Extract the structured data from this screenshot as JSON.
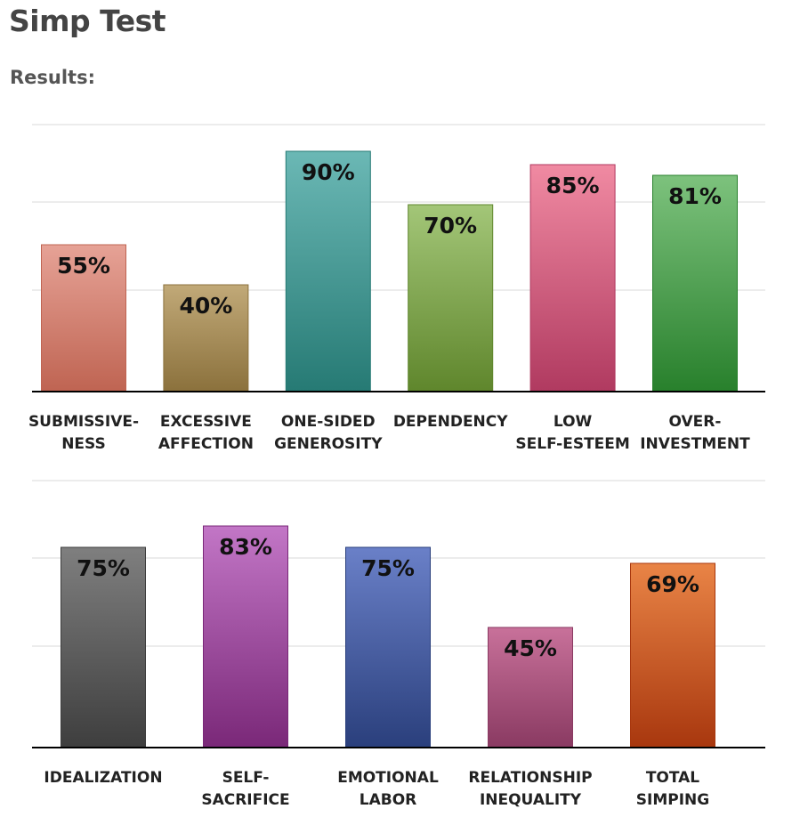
{
  "page": {
    "title": "Simp Test",
    "results_label": "Results:"
  },
  "chart_data": [
    {
      "type": "bar",
      "title": "",
      "xlabel": "",
      "ylabel": "",
      "ylim": [
        0,
        100
      ],
      "grid": true,
      "categories": [
        [
          "SUBMISSIVE-",
          "NESS"
        ],
        [
          "EXCESSIVE",
          "AFFECTION"
        ],
        [
          "ONE-SIDED",
          "GENEROSITY"
        ],
        [
          "DEPENDENCY"
        ],
        [
          "LOW",
          "SELF-ESTEEM"
        ],
        [
          "OVER-",
          "INVESTMENT"
        ]
      ],
      "values": [
        55,
        40,
        90,
        70,
        85,
        81
      ],
      "value_labels": [
        "55%",
        "40%",
        "90%",
        "70%",
        "85%",
        "81%"
      ],
      "colors": [
        [
          "#e6a296",
          "#bf6452"
        ],
        [
          "#c1a978",
          "#8b713c"
        ],
        [
          "#6bb8b5",
          "#267a74"
        ],
        [
          "#a3c678",
          "#5f862c"
        ],
        [
          "#f08aa2",
          "#b03a60"
        ],
        [
          "#7dc27d",
          "#28802c"
        ]
      ]
    },
    {
      "type": "bar",
      "title": "",
      "xlabel": "",
      "ylabel": "",
      "ylim": [
        0,
        100
      ],
      "grid": true,
      "categories": [
        [
          "IDEALIZATION"
        ],
        [
          "SELF-",
          "SACRIFICE"
        ],
        [
          "EMOTIONAL",
          "LABOR"
        ],
        [
          "RELATIONSHIP",
          "INEQUALITY"
        ],
        [
          "TOTAL",
          "SIMPING"
        ]
      ],
      "values": [
        75,
        83,
        75,
        45,
        69
      ],
      "value_labels": [
        "75%",
        "83%",
        "75%",
        "45%",
        "69%"
      ],
      "colors": [
        [
          "#7f7f7f",
          "#3e3e3e"
        ],
        [
          "#c276c6",
          "#7a2878"
        ],
        [
          "#6a80c8",
          "#2a3f7c"
        ],
        [
          "#c8719a",
          "#8a3a62"
        ],
        [
          "#e98446",
          "#a8370e"
        ]
      ]
    }
  ]
}
